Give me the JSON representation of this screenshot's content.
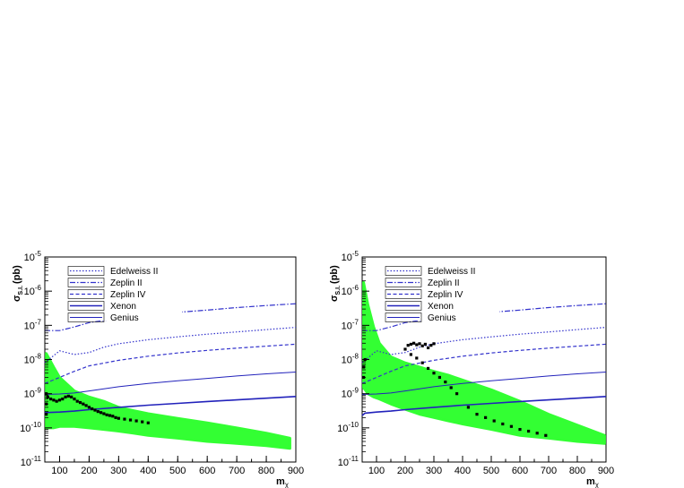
{
  "chart_data": [
    {
      "type": "scatter",
      "xlabel": "m",
      "xlabel_sub": "χ",
      "ylabel": "σ",
      "ylabel_sub": "S.I.",
      "ylabel_unit": "(pb)",
      "xlim": [
        50,
        900
      ],
      "ylim": [
        1e-11,
        1e-05
      ],
      "yscale": "log",
      "x_ticks": [
        100,
        200,
        300,
        400,
        500,
        600,
        700,
        800,
        900
      ],
      "y_ticks": [
        {
          "value": 1e-11,
          "base": "10",
          "exp": "-11"
        },
        {
          "value": 1e-10,
          "base": "10",
          "exp": "-10"
        },
        {
          "value": 1e-09,
          "base": "10",
          "exp": "-9"
        },
        {
          "value": 1e-08,
          "base": "10",
          "exp": "-8"
        },
        {
          "value": 1e-07,
          "base": "10",
          "exp": "-7"
        },
        {
          "value": 1e-06,
          "base": "10",
          "exp": "-6"
        },
        {
          "value": 1e-05,
          "base": "10",
          "exp": "-5"
        }
      ],
      "legend_position": "top-left",
      "series": [
        {
          "name": "Edelweiss II",
          "style": "dotted",
          "color": "#3333cc",
          "width": 1.2,
          "x": [
            50,
            100,
            150,
            200,
            250,
            300,
            400,
            500,
            600,
            700,
            800,
            900
          ],
          "y": [
            8e-09,
            1.8e-08,
            1.4e-08,
            1.6e-08,
            2.3e-08,
            2.9e-08,
            3.8e-08,
            4.6e-08,
            5.5e-08,
            6.4e-08,
            7.5e-08,
            8.7e-08
          ]
        },
        {
          "name": "Zeplin II",
          "style": "dashdot",
          "color": "#3333cc",
          "width": 1.2,
          "x": [
            50,
            100,
            150,
            200,
            300,
            400,
            500,
            600,
            700,
            800,
            900
          ],
          "y": [
            7e-08,
            7e-08,
            9e-08,
            1.2e-07,
            1.6e-07,
            2e-07,
            2.4e-07,
            2.8e-07,
            3.3e-07,
            3.8e-07,
            4.3e-07
          ]
        },
        {
          "name": "Zeplin IV",
          "style": "dashed",
          "color": "#3333cc",
          "width": 1.2,
          "x": [
            50,
            100,
            150,
            200,
            300,
            400,
            500,
            600,
            700,
            800,
            900
          ],
          "y": [
            2e-09,
            3e-09,
            4.5e-09,
            6.5e-09,
            9.5e-09,
            1.25e-08,
            1.55e-08,
            1.85e-08,
            2.15e-08,
            2.45e-08,
            2.8e-08
          ]
        },
        {
          "name": "Xenon",
          "style": "solid",
          "color": "#2222bb",
          "width": 1.6,
          "x": [
            50,
            100,
            150,
            200,
            300,
            400,
            500,
            600,
            700,
            800,
            900
          ],
          "y": [
            2.8e-10,
            2.9e-10,
            3.1e-10,
            3.4e-10,
            4e-10,
            4.6e-10,
            5.2e-10,
            5.9e-10,
            6.6e-10,
            7.4e-10,
            8.3e-10
          ]
        },
        {
          "name": "Genius",
          "style": "solid",
          "color": "#2222bb",
          "width": 1.0,
          "x": [
            50,
            100,
            150,
            200,
            300,
            400,
            500,
            600,
            700,
            800,
            900
          ],
          "y": [
            9.5e-10,
            9.8e-10,
            1.05e-09,
            1.2e-09,
            1.6e-09,
            2e-09,
            2.4e-09,
            2.8e-09,
            3.3e-09,
            3.8e-09,
            4.3e-09
          ]
        }
      ],
      "scan_band": {
        "color": "#33ff33",
        "x": [
          55,
          80,
          100,
          150,
          200,
          250,
          300,
          350,
          400,
          500,
          600,
          700,
          800,
          880
        ],
        "ylow": [
          1e-10,
          1e-10,
          1.1e-10,
          1.1e-10,
          1e-10,
          9e-11,
          8e-11,
          7e-11,
          6e-11,
          5e-11,
          4e-11,
          3.5e-11,
          3e-11,
          2.5e-11
        ],
        "yhigh": [
          1.5e-08,
          6e-09,
          3e-09,
          1.2e-09,
          8e-10,
          6e-10,
          4e-10,
          3.2e-10,
          2.6e-10,
          1.9e-10,
          1.4e-10,
          1e-10,
          7e-11,
          5e-11
        ]
      },
      "black_points": {
        "x": [
          55,
          55,
          55,
          60,
          70,
          80,
          90,
          100,
          110,
          120,
          130,
          140,
          150,
          160,
          170,
          180,
          190,
          200,
          210,
          220,
          230,
          240,
          250,
          260,
          270,
          280,
          290,
          300,
          320,
          340,
          360,
          380,
          400
        ],
        "y": [
          2.5e-10,
          5e-10,
          1e-09,
          8e-10,
          7e-10,
          6.5e-10,
          6e-10,
          6.5e-10,
          7e-10,
          8e-10,
          8.5e-10,
          8e-10,
          7e-10,
          6e-10,
          5.5e-10,
          5e-10,
          4.5e-10,
          4e-10,
          3.6e-10,
          3.3e-10,
          3e-10,
          2.8e-10,
          2.6e-10,
          2.4e-10,
          2.3e-10,
          2.2e-10,
          2e-10,
          1.9e-10,
          1.8e-10,
          1.7e-10,
          1.6e-10,
          1.5e-10,
          1.4e-10
        ]
      }
    },
    {
      "type": "scatter",
      "xlabel": "m",
      "xlabel_sub": "χ",
      "ylabel": "σ",
      "ylabel_sub": "S.I.",
      "ylabel_unit": "(pb)",
      "xlim": [
        50,
        900
      ],
      "ylim": [
        1e-11,
        1e-05
      ],
      "yscale": "log",
      "x_ticks": [
        100,
        200,
        300,
        400,
        500,
        600,
        700,
        800,
        900
      ],
      "y_ticks": [
        {
          "value": 1e-11,
          "base": "10",
          "exp": "-11"
        },
        {
          "value": 1e-10,
          "base": "10",
          "exp": "-10"
        },
        {
          "value": 1e-09,
          "base": "10",
          "exp": "-9"
        },
        {
          "value": 1e-08,
          "base": "10",
          "exp": "-8"
        },
        {
          "value": 1e-07,
          "base": "10",
          "exp": "-7"
        },
        {
          "value": 1e-06,
          "base": "10",
          "exp": "-6"
        },
        {
          "value": 1e-05,
          "base": "10",
          "exp": "-5"
        }
      ],
      "legend_position": "top-left",
      "series": [
        {
          "name": "Edelweiss II",
          "style": "dotted",
          "color": "#3333cc",
          "width": 1.2,
          "x": [
            50,
            100,
            150,
            200,
            250,
            300,
            400,
            500,
            600,
            700,
            800,
            900
          ],
          "y": [
            8e-09,
            1.8e-08,
            1.4e-08,
            1.6e-08,
            2.3e-08,
            2.9e-08,
            3.8e-08,
            4.6e-08,
            5.5e-08,
            6.4e-08,
            7.5e-08,
            8.7e-08
          ]
        },
        {
          "name": "Zeplin II",
          "style": "dashdot",
          "color": "#3333cc",
          "width": 1.2,
          "x": [
            50,
            100,
            150,
            200,
            300,
            400,
            500,
            600,
            700,
            800,
            900
          ],
          "y": [
            7e-08,
            7e-08,
            9e-08,
            1.2e-07,
            1.6e-07,
            2e-07,
            2.4e-07,
            2.8e-07,
            3.3e-07,
            3.8e-07,
            4.3e-07
          ]
        },
        {
          "name": "Zeplin IV",
          "style": "dashed",
          "color": "#3333cc",
          "width": 1.2,
          "x": [
            50,
            100,
            150,
            200,
            300,
            400,
            500,
            600,
            700,
            800,
            900
          ],
          "y": [
            2e-09,
            3e-09,
            4.5e-09,
            6.5e-09,
            9.5e-09,
            1.25e-08,
            1.55e-08,
            1.85e-08,
            2.15e-08,
            2.45e-08,
            2.8e-08
          ]
        },
        {
          "name": "Xenon",
          "style": "solid",
          "color": "#2222bb",
          "width": 1.6,
          "x": [
            50,
            60,
            80,
            100,
            150,
            200,
            300,
            400,
            500,
            600,
            700,
            800,
            900
          ],
          "y": [
            2.3e-10,
            2.7e-10,
            2.8e-10,
            2.9e-10,
            3.1e-10,
            3.4e-10,
            4e-10,
            4.6e-10,
            5.2e-10,
            5.9e-10,
            6.6e-10,
            7.4e-10,
            8.3e-10
          ]
        },
        {
          "name": "Genius",
          "style": "solid",
          "color": "#2222bb",
          "width": 1.0,
          "x": [
            50,
            100,
            150,
            200,
            300,
            400,
            500,
            600,
            700,
            800,
            900
          ],
          "y": [
            9.5e-10,
            9.8e-10,
            1.05e-09,
            1.2e-09,
            1.6e-09,
            2e-09,
            2.4e-09,
            2.8e-09,
            3.3e-09,
            3.8e-09,
            4.3e-09
          ]
        }
      ],
      "scan_band": {
        "color": "#33ff33",
        "x": [
          55,
          70,
          90,
          110,
          150,
          200,
          250,
          300,
          350,
          400,
          500,
          600,
          700,
          800,
          895
        ],
        "ylow": [
          1.5e-09,
          1e-09,
          8e-10,
          7e-10,
          5e-10,
          3.5e-10,
          2.5e-10,
          2e-10,
          1.6e-10,
          1.3e-10,
          9e-11,
          6e-11,
          5e-11,
          4e-11,
          3.5e-11
        ],
        "yhigh": [
          1.8e-06,
          4e-07,
          9e-08,
          3e-08,
          1.2e-08,
          8e-09,
          6e-09,
          4.5e-09,
          3.5e-09,
          2.5e-09,
          1.3e-09,
          6e-10,
          2.5e-10,
          1.2e-10,
          6e-11
        ]
      },
      "black_points": {
        "x": [
          55,
          55,
          60,
          200,
          210,
          220,
          230,
          240,
          250,
          260,
          270,
          280,
          290,
          300,
          220,
          240,
          260,
          280,
          300,
          320,
          340,
          360,
          380,
          420,
          450,
          480,
          510,
          540,
          570,
          600,
          630,
          660,
          690
        ],
        "y": [
          3e-09,
          6e-09,
          1e-08,
          2e-08,
          2.6e-08,
          2.8e-08,
          3e-08,
          2.7e-08,
          2.9e-08,
          2.5e-08,
          2.8e-08,
          2.2e-08,
          2.6e-08,
          2.9e-08,
          1.4e-08,
          1.1e-08,
          8e-09,
          5.5e-09,
          4e-09,
          3e-09,
          2.2e-09,
          1.5e-09,
          1e-09,
          4e-10,
          2.5e-10,
          2e-10,
          1.6e-10,
          1.3e-10,
          1.1e-10,
          9e-11,
          8e-11,
          7e-11,
          6e-11
        ]
      }
    }
  ]
}
